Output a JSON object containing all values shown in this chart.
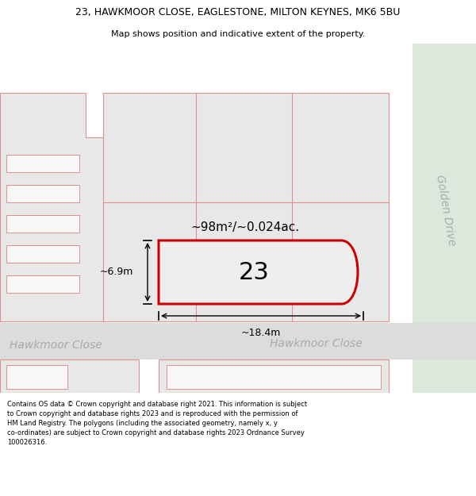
{
  "title_line1": "23, HAWKMOOR CLOSE, EAGLESTONE, MILTON KEYNES, MK6 5BU",
  "title_line2": "Map shows position and indicative extent of the property.",
  "footer_text": "Contains OS data © Crown copyright and database right 2021. This information is subject\nto Crown copyright and database rights 2023 and is reproduced with the permission of\nHM Land Registry. The polygons (including the associated geometry, namely x, y\nco-ordinates) are subject to Crown copyright and database rights 2023 Ordnance Survey\n100026316.",
  "area_label": "~98m²/~0.024ac.",
  "width_label": "~18.4m",
  "height_label": "~6.9m",
  "plot_number": "23",
  "street_name_left": "Hawkmoor Close",
  "street_name_center": "Hawkmoor Close",
  "street_name_right": "Golden Drive",
  "bg_light": "#f0f0f0",
  "bg_white": "#ffffff",
  "block_fill": "#e8e8e8",
  "block_edge": "#e09090",
  "inner_fill": "#f8f8f8",
  "road_fill": "#dcdcdc",
  "green_fill": "#dce8dc",
  "highlight_fill": "#eeeeee",
  "highlight_edge": "#cc0000",
  "meas_color": "#000000",
  "label_color": "#aaaaaa",
  "text_color": "#000000"
}
